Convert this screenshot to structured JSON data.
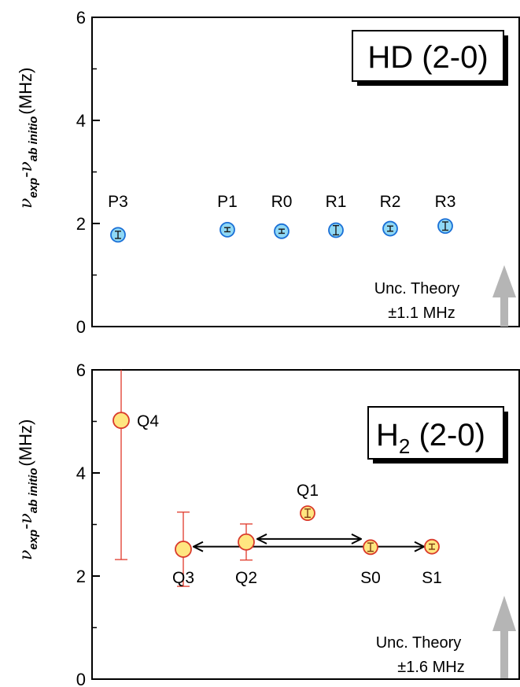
{
  "chart_data": [
    {
      "type": "scatter",
      "panel": "top",
      "title": "HD (2-0)",
      "ylabel": {
        "nu": "ν",
        "exp": "exp",
        "dash": "-",
        "abinitio": "ab initio",
        "unit": "(MHz)"
      },
      "ylim": [
        0,
        6
      ],
      "yticks": [
        0,
        2,
        4,
        6
      ],
      "x_order": [
        1,
        3,
        4,
        5,
        6,
        7
      ],
      "points": [
        {
          "label": "P3",
          "y": 1.78,
          "err": 0.07
        },
        {
          "label": "P1",
          "y": 1.88,
          "err": 0.04
        },
        {
          "label": "R0",
          "y": 1.85,
          "err": 0.04
        },
        {
          "label": "R1",
          "y": 1.87,
          "err": 0.09
        },
        {
          "label": "R2",
          "y": 1.9,
          "err": 0.05
        },
        {
          "label": "R3",
          "y": 1.95,
          "err": 0.08
        }
      ],
      "annotation": {
        "line1": "Unc. Theory",
        "line2": "±1.1 MHz"
      },
      "colors": {
        "fill": "#8fd8f5",
        "edge": "#1a6fd6",
        "error": "#1a1a1a",
        "arrow": "#b5b5b5"
      }
    },
    {
      "type": "scatter",
      "panel": "bottom",
      "title": {
        "main": "H",
        "sub": "2",
        "rest": " (2-0)"
      },
      "ylabel": {
        "nu": "ν",
        "exp": "exp",
        "dash": "-",
        "abinitio": "ab initio",
        "unit": "(MHz)"
      },
      "ylim": [
        0,
        6
      ],
      "yticks": [
        0,
        2,
        4,
        6
      ],
      "x_order": [
        1,
        2,
        3,
        4,
        5,
        6
      ],
      "points": [
        {
          "label": "Q4",
          "y": 5.02,
          "err": 2.7
        },
        {
          "label": "Q3",
          "y": 2.52,
          "err": 0.72
        },
        {
          "label": "Q2",
          "y": 2.66,
          "err": 0.35
        },
        {
          "label": "Q1",
          "y": 3.22,
          "err": 0.08
        },
        {
          "label": "S0",
          "y": 2.56,
          "err": 0.08
        },
        {
          "label": "S1",
          "y": 2.57,
          "err": 0.05
        }
      ],
      "links": [
        {
          "from": "Q3",
          "to": "S1"
        },
        {
          "from": "Q2",
          "to": "S0"
        }
      ],
      "annotation": {
        "line1": "Unc. Theory",
        "line2": "±1.6 MHz"
      },
      "colors": {
        "fill": "#ffe680",
        "edge": "#d93a2b",
        "error": "#e0392b",
        "arrow": "#b5b5b5"
      }
    }
  ]
}
